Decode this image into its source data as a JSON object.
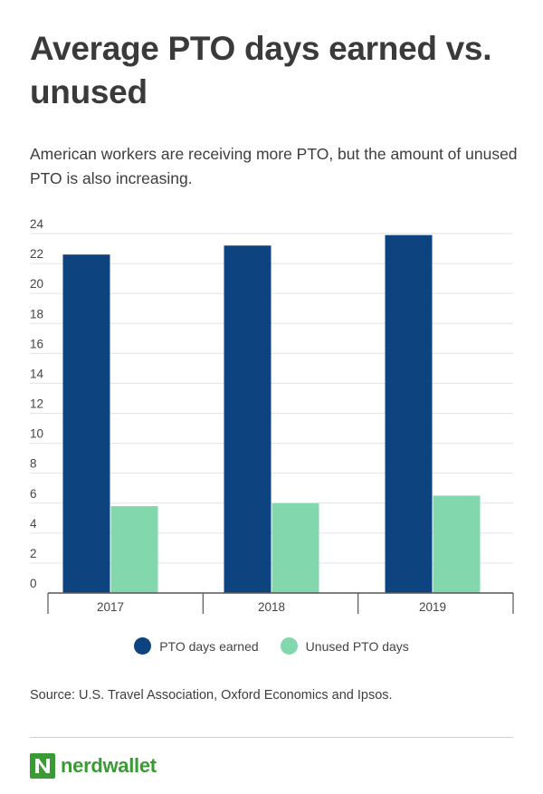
{
  "header": {
    "title": "Average PTO days earned vs. unused",
    "subtitle": "American workers are receiving more PTO, but the amount of unused PTO is also increasing."
  },
  "colors": {
    "earned": "#0d4480",
    "unused": "#82d7ad",
    "grid": "#e3e3e3",
    "axis": "#555555",
    "brand": "#3a9b35"
  },
  "chart_data": {
    "type": "bar",
    "title": "Average PTO days earned vs. unused",
    "categories": [
      "2017",
      "2018",
      "2019"
    ],
    "series": [
      {
        "name": "PTO days earned",
        "values": [
          22.6,
          23.2,
          23.9
        ]
      },
      {
        "name": "Unused PTO days",
        "values": [
          5.8,
          6.0,
          6.5
        ]
      }
    ],
    "ylim": [
      0,
      24
    ],
    "yticks": [
      0,
      2,
      4,
      6,
      8,
      10,
      12,
      14,
      16,
      18,
      20,
      22,
      24
    ],
    "xlabel": "",
    "ylabel": "",
    "grid": true,
    "legend_position": "bottom"
  },
  "legend": {
    "earned_label": "PTO days earned",
    "unused_label": "Unused PTO days"
  },
  "footer": {
    "source": "Source: U.S. Travel Association, Oxford Economics and Ipsos.",
    "brand": "nerdwallet"
  }
}
